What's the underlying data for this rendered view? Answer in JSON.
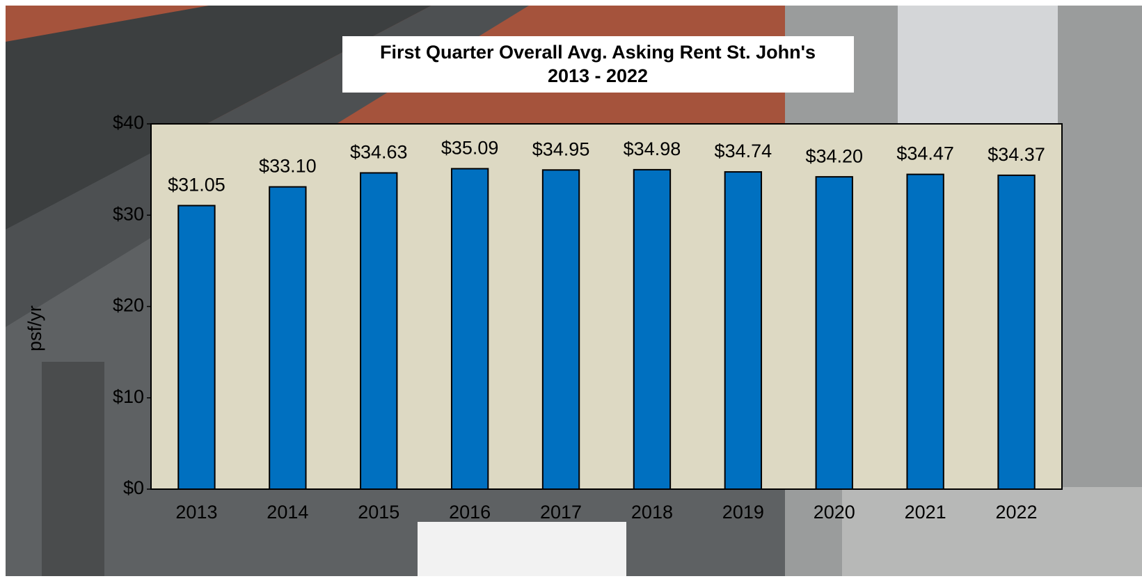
{
  "chart_data": {
    "type": "bar",
    "title": "First Quarter Overall Avg. Asking Rent St. John's",
    "subtitle": "2013 - 2022",
    "y_label": "psf/yr",
    "categories": [
      "2013",
      "2014",
      "2015",
      "2016",
      "2017",
      "2018",
      "2019",
      "2020",
      "2021",
      "2022"
    ],
    "values": [
      31.05,
      33.1,
      34.63,
      35.09,
      34.95,
      34.98,
      34.74,
      34.2,
      34.47,
      34.37
    ],
    "value_labels": [
      "$31.05",
      "$33.10",
      "$34.63",
      "$35.09",
      "$34.95",
      "$34.98",
      "$34.74",
      "$34.20",
      "$34.47",
      "$34.37"
    ],
    "color": "#0070c0",
    "ylim": [
      0,
      40
    ],
    "yticks": [
      {
        "value": 0,
        "label": "$0"
      },
      {
        "value": 10,
        "label": "$10"
      },
      {
        "value": 20,
        "label": "$20"
      },
      {
        "value": 30,
        "label": "$30"
      },
      {
        "value": 40,
        "label": "$40"
      }
    ],
    "grid": false
  }
}
